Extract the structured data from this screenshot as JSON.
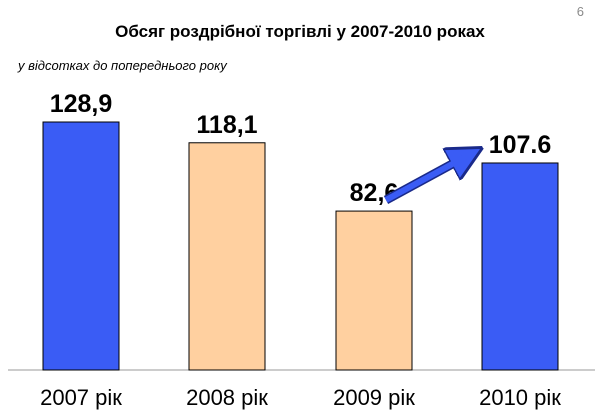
{
  "page_number": "6",
  "chart_data": {
    "type": "bar",
    "title": "Обсяг роздрібної торгівлі у 2007-2010 роках",
    "subtitle": "у відсотках до попереднього року",
    "categories": [
      "2007 рік",
      "2008 рік",
      "2009 рік",
      "2010 рік"
    ],
    "values": [
      128.9,
      118.1,
      82.6,
      107.6
    ],
    "value_labels": [
      "128,9",
      "118,1",
      "82,6",
      "107.6"
    ],
    "bar_colors": [
      "#3a5cf5",
      "#ffd0a0",
      "#ffd0a0",
      "#3a5cf5"
    ],
    "bar_outline": "#000000",
    "arrow_color": "#3a5cf5",
    "ylim": [
      0,
      128.9
    ],
    "grid": false,
    "legend": "none"
  }
}
